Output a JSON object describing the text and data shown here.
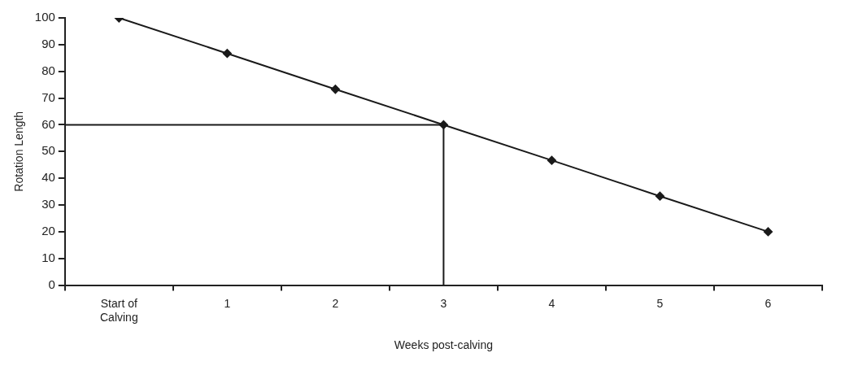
{
  "chart_data": {
    "type": "line",
    "xlabel": "Weeks post-calving",
    "ylabel": "Rotation Length",
    "categories": [
      "Start of Calving",
      "1",
      "2",
      "3",
      "4",
      "5",
      "6"
    ],
    "series": [
      {
        "color": "#1a1a1a",
        "values": [
          100,
          86.7,
          73.3,
          60,
          46.7,
          33.3,
          20
        ]
      }
    ],
    "ylim": [
      0,
      100
    ],
    "yticks": [
      0,
      10,
      20,
      30,
      40,
      50,
      60,
      70,
      80,
      90,
      100
    ],
    "ref_lines": [
      {
        "axis": "y",
        "value": 60,
        "color": "#1a1a1a"
      },
      {
        "axis": "x",
        "value": "3",
        "color": "#1a1a1a"
      }
    ],
    "grid": false,
    "legend": false,
    "marker": "diamond",
    "line_style": "solid"
  }
}
